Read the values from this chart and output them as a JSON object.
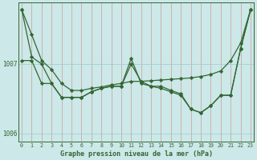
{
  "background_color": "#cce8e8",
  "grid_color": "#99cccc",
  "line_color": "#336633",
  "xlabel": "Graphe pression niveau de la mer (hPa)",
  "ylim": [
    1005.88,
    1007.88
  ],
  "yticks": [
    1006,
    1007
  ],
  "xlim": [
    -0.3,
    23.3
  ],
  "xticks": [
    0,
    1,
    2,
    3,
    4,
    5,
    6,
    7,
    8,
    9,
    10,
    11,
    12,
    13,
    14,
    15,
    16,
    17,
    18,
    19,
    20,
    21,
    22,
    23
  ],
  "series1_x": [
    0,
    23
  ],
  "series1_y": [
    1007.78,
    1007.78
  ],
  "broad_line": {
    "x": [
      0,
      2,
      23
    ],
    "y": [
      1007.78,
      1007.05,
      1007.78
    ]
  },
  "line_smooth": [
    1007.78,
    1007.42,
    1007.05,
    1006.92,
    1006.72,
    1006.62,
    1006.62,
    1006.65,
    1006.67,
    1006.7,
    1006.72,
    1006.75,
    1006.75,
    1006.76,
    1006.77,
    1006.78,
    1006.79,
    1006.8,
    1006.82,
    1006.85,
    1006.9,
    1007.05,
    1007.3,
    1007.78
  ],
  "line_jagged": [
    1007.05,
    1007.05,
    1006.72,
    1006.72,
    1006.52,
    1006.52,
    1006.52,
    1006.6,
    1006.65,
    1006.68,
    1006.68,
    1007.08,
    1006.72,
    1006.68,
    1006.68,
    1006.62,
    1006.57,
    1006.35,
    1006.3,
    1006.4,
    1006.55,
    1006.55,
    1007.22,
    1007.78
  ],
  "line_mid": [
    1007.78,
    1007.1,
    1007.0,
    1006.72,
    1006.52,
    1006.52,
    1006.52,
    1006.6,
    1006.65,
    1006.68,
    1006.68,
    1007.0,
    1006.75,
    1006.68,
    1006.65,
    1006.6,
    1006.55,
    1006.35,
    1006.3,
    1006.4,
    1006.55,
    1006.55,
    1007.22,
    1007.78
  ]
}
